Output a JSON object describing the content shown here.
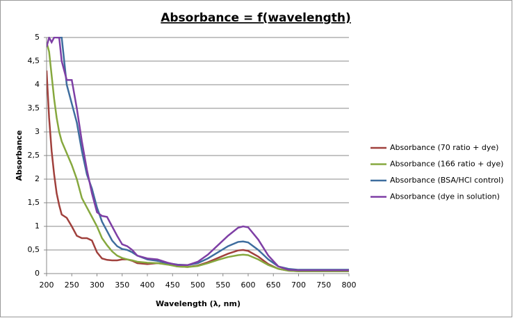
{
  "chart_data": {
    "type": "line",
    "title": "Absorbance = f(wavelength)",
    "x_label": "Wavelength (λ, nm)",
    "y_label": "Absorbance",
    "x": [
      200,
      205,
      210,
      215,
      220,
      225,
      230,
      240,
      250,
      260,
      270,
      280,
      290,
      300,
      310,
      320,
      330,
      340,
      350,
      360,
      370,
      380,
      400,
      420,
      440,
      460,
      480,
      500,
      520,
      540,
      560,
      580,
      590,
      600,
      620,
      640,
      660,
      680,
      700,
      750,
      800
    ],
    "series": [
      {
        "name": "Absorbance (70 ratio + dye)",
        "color": "#a0403c",
        "values": [
          4.3,
          3.3,
          2.6,
          2.1,
          1.7,
          1.45,
          1.25,
          1.18,
          1.0,
          0.8,
          0.75,
          0.75,
          0.7,
          0.45,
          0.32,
          0.29,
          0.28,
          0.28,
          0.3,
          0.3,
          0.27,
          0.22,
          0.2,
          0.22,
          0.2,
          0.15,
          0.14,
          0.17,
          0.24,
          0.33,
          0.42,
          0.49,
          0.5,
          0.48,
          0.36,
          0.2,
          0.1,
          0.06,
          0.05,
          0.05,
          0.05
        ]
      },
      {
        "name": "Absorbance (166 ratio + dye)",
        "color": "#86a83e",
        "values": [
          4.9,
          4.7,
          4.2,
          3.7,
          3.3,
          3.0,
          2.8,
          2.55,
          2.3,
          2.0,
          1.6,
          1.4,
          1.2,
          1.0,
          0.75,
          0.6,
          0.47,
          0.38,
          0.33,
          0.3,
          0.28,
          0.25,
          0.23,
          0.22,
          0.19,
          0.15,
          0.14,
          0.16,
          0.22,
          0.29,
          0.35,
          0.39,
          0.4,
          0.39,
          0.3,
          0.18,
          0.1,
          0.06,
          0.05,
          0.05,
          0.05
        ]
      },
      {
        "name": "Absorbance (BSA/HCl control)",
        "color": "#3e6d9e",
        "values": [
          null,
          null,
          null,
          null,
          5,
          5,
          5,
          4.0,
          3.6,
          3.2,
          2.6,
          2.1,
          1.8,
          1.4,
          1.1,
          0.9,
          0.7,
          0.58,
          0.52,
          0.5,
          0.45,
          0.38,
          0.3,
          0.27,
          0.22,
          0.19,
          0.18,
          0.22,
          0.32,
          0.45,
          0.58,
          0.67,
          0.68,
          0.66,
          0.5,
          0.3,
          0.15,
          0.1,
          0.08,
          0.08,
          0.08
        ]
      },
      {
        "name": "Absorbance (dye in solution)",
        "color": "#7e3fa5",
        "values": [
          4.8,
          5,
          4.9,
          5,
          5,
          5,
          4.5,
          4.1,
          4.1,
          3.5,
          2.8,
          2.2,
          1.7,
          1.3,
          1.22,
          1.2,
          1.0,
          0.8,
          0.62,
          0.58,
          0.5,
          0.38,
          0.32,
          0.3,
          0.23,
          0.18,
          0.18,
          0.25,
          0.4,
          0.6,
          0.8,
          0.97,
          1.0,
          0.98,
          0.72,
          0.38,
          0.15,
          0.08,
          0.07,
          0.07,
          0.07
        ]
      }
    ],
    "xlim": [
      200,
      800
    ],
    "xticks": [
      200,
      250,
      300,
      350,
      400,
      450,
      500,
      550,
      600,
      650,
      700,
      750,
      800
    ],
    "ylim": [
      0,
      5
    ],
    "yticks": [
      0,
      {
        "value": 0.5,
        "label": "0,5"
      },
      1,
      {
        "value": 1.5,
        "label": "1,5"
      },
      2,
      {
        "value": 2.5,
        "label": "2,5"
      },
      3,
      {
        "value": 3.5,
        "label": "3,5"
      },
      4,
      {
        "value": 4.5,
        "label": "4,5"
      },
      5
    ],
    "grid": true,
    "legend": "right"
  }
}
